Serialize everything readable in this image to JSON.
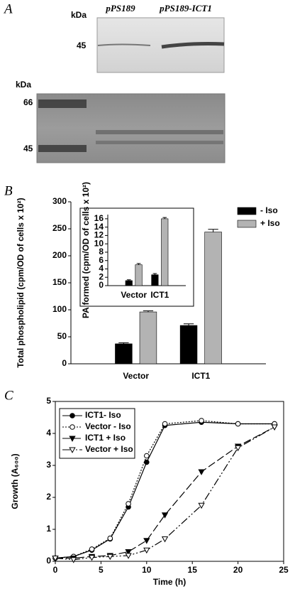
{
  "panel_a": {
    "label": "A",
    "top_blot": {
      "unit": "kDa",
      "marker": "45",
      "lanes": [
        "pPS189",
        "pPS189-ICT1"
      ]
    },
    "bottom_blot": {
      "unit": "kDa",
      "markers": [
        "66",
        "45"
      ]
    }
  },
  "chart_data": [
    {
      "type": "bar",
      "panel_label": "B",
      "ylabel": "Total phospholipid (cpm/OD of cells x 10²)",
      "categories": [
        "Vector",
        "ICT1"
      ],
      "series": [
        {
          "name": "- Iso",
          "color": "#000000",
          "values": [
            37,
            71
          ],
          "errors": [
            2,
            3
          ]
        },
        {
          "name": "+ Iso",
          "color": "#b3b3b3",
          "values": [
            96,
            244
          ],
          "errors": [
            2,
            5
          ]
        }
      ],
      "ylim": [
        0,
        300
      ],
      "yticks": [
        0,
        50,
        100,
        150,
        200,
        250,
        300
      ],
      "legend": "upper right"
    },
    {
      "type": "bar",
      "ylabel": "PA formed (cpm/OD of cells x 10²)",
      "categories": [
        "Vector",
        "ICT1"
      ],
      "series": [
        {
          "color": "#000000",
          "values": [
            1.2,
            2.6
          ],
          "errors": [
            0.2,
            0.3
          ]
        },
        {
          "color": "#b3b3b3",
          "values": [
            5,
            16
          ],
          "errors": [
            0.3,
            0.3
          ]
        }
      ],
      "ylim": [
        0,
        17
      ],
      "yticks": [
        0,
        2,
        4,
        6,
        8,
        10,
        12,
        14,
        16
      ]
    },
    {
      "type": "line",
      "panel_label": "C",
      "xlabel": "Time (h)",
      "ylabel": "Growth (A₆₀₀)",
      "x": [
        0,
        2,
        4,
        6,
        8,
        10,
        12,
        16,
        20,
        24
      ],
      "series": [
        {
          "name": "ICT1- Iso",
          "color": "#000000",
          "marker": "circle",
          "filled": true,
          "line_style": "solid",
          "values": [
            0.1,
            0.15,
            0.35,
            0.7,
            1.7,
            3.1,
            4.25,
            4.35,
            4.3,
            4.3
          ]
        },
        {
          "name": "Vector - Iso",
          "color": "#000000",
          "marker": "circle",
          "filled": false,
          "line_style": "dotted",
          "values": [
            0.1,
            0.15,
            0.38,
            0.72,
            1.8,
            3.3,
            4.3,
            4.4,
            4.3,
            4.3
          ]
        },
        {
          "name": "ICT1 + Iso",
          "color": "#000000",
          "marker": "triangle-down",
          "filled": true,
          "line_style": "dashed",
          "values": [
            0.1,
            0.1,
            0.15,
            0.18,
            0.3,
            0.65,
            1.45,
            2.8,
            3.6,
            4.2
          ]
        },
        {
          "name": "Vector + Iso",
          "color": "#000000",
          "marker": "triangle-down",
          "filled": false,
          "line_style": "dashdotdot",
          "values": [
            0.1,
            0.05,
            0.12,
            0.15,
            0.18,
            0.35,
            0.7,
            1.75,
            3.55,
            4.2
          ]
        }
      ],
      "xlim": [
        0,
        25
      ],
      "xticks": [
        0,
        5,
        10,
        15,
        20,
        25
      ],
      "ylim": [
        0,
        5
      ],
      "yticks": [
        0,
        1,
        2,
        3,
        4,
        5
      ],
      "legend": "upper left"
    }
  ]
}
